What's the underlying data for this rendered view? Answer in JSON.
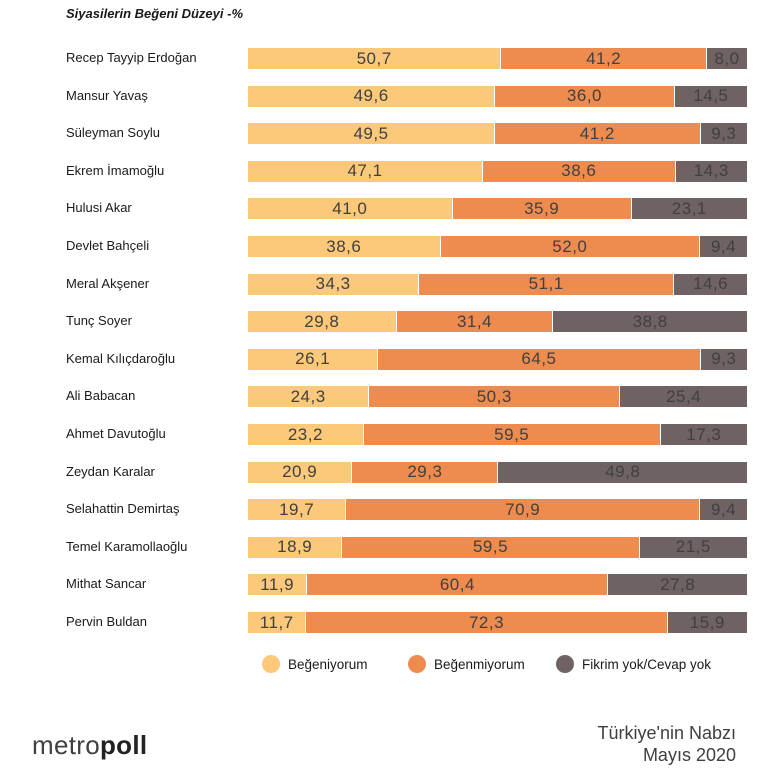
{
  "chart_data": {
    "type": "bar",
    "stacked": true,
    "orientation": "horizontal",
    "title": "Siyasilerin Beğeni Düzeyi -%",
    "categories": [
      "Recep Tayyip Erdoğan",
      "Mansur Yavaş",
      "Süleyman Soylu",
      "Ekrem İmamoğlu",
      "Hulusi Akar",
      "Devlet Bahçeli",
      "Meral Akşener",
      "Tunç Soyer",
      "Kemal Kılıçdaroğlu",
      "Ali Babacan",
      "Ahmet Davutoğlu",
      "Zeydan Karalar",
      "Selahattin Demirtaş",
      "Temel Karamollaoğlu",
      "Mithat Sancar",
      "Pervin Buldan"
    ],
    "series": [
      {
        "name": "Beğeniyorum",
        "color": "#FCC97A",
        "values": [
          50.7,
          49.6,
          49.5,
          47.1,
          41.0,
          38.6,
          34.3,
          29.8,
          26.1,
          24.3,
          23.2,
          20.9,
          19.7,
          18.9,
          11.9,
          11.7
        ],
        "labels": [
          "50,7",
          "49,6",
          "49,5",
          "47,1",
          "41,0",
          "38,6",
          "34,3",
          "29,8",
          "26,1",
          "24,3",
          "23,2",
          "20,9",
          "19,7",
          "18,9",
          "11,9",
          "11,7"
        ]
      },
      {
        "name": "Beğenmiyorum",
        "color": "#EE8B4F",
        "values": [
          41.2,
          36.0,
          41.2,
          38.6,
          35.9,
          52.0,
          51.1,
          31.4,
          64.5,
          50.3,
          59.5,
          29.3,
          70.9,
          59.5,
          60.4,
          72.3
        ],
        "labels": [
          "41,2",
          "36,0",
          "41,2",
          "38,6",
          "35,9",
          "52,0",
          "51,1",
          "31,4",
          "64,5",
          "50,3",
          "59,5",
          "29,3",
          "70,9",
          "59,5",
          "60,4",
          "72,3"
        ]
      },
      {
        "name": "Fikrim yok/Cevap yok",
        "color": "#6E6362",
        "values": [
          8.0,
          14.5,
          9.3,
          14.3,
          23.1,
          9.4,
          14.6,
          38.8,
          9.3,
          25.4,
          17.3,
          49.8,
          9.4,
          21.5,
          27.8,
          15.9
        ],
        "labels": [
          "8,0",
          "14,5",
          "9,3",
          "14,3",
          "23,1",
          "9,4",
          "14,6",
          "38,8",
          "9,3",
          "25,4",
          "17,3",
          "49,8",
          "9,4",
          "21,5",
          "27,8",
          "15,9"
        ]
      }
    ],
    "xlim": [
      0,
      100
    ],
    "legend_position": "bottom"
  },
  "branding": {
    "logo_light": "metro",
    "logo_bold": "poll"
  },
  "source": {
    "line1": "Türkiye'nin Nabzı",
    "line2": "Mayıs 2020"
  }
}
